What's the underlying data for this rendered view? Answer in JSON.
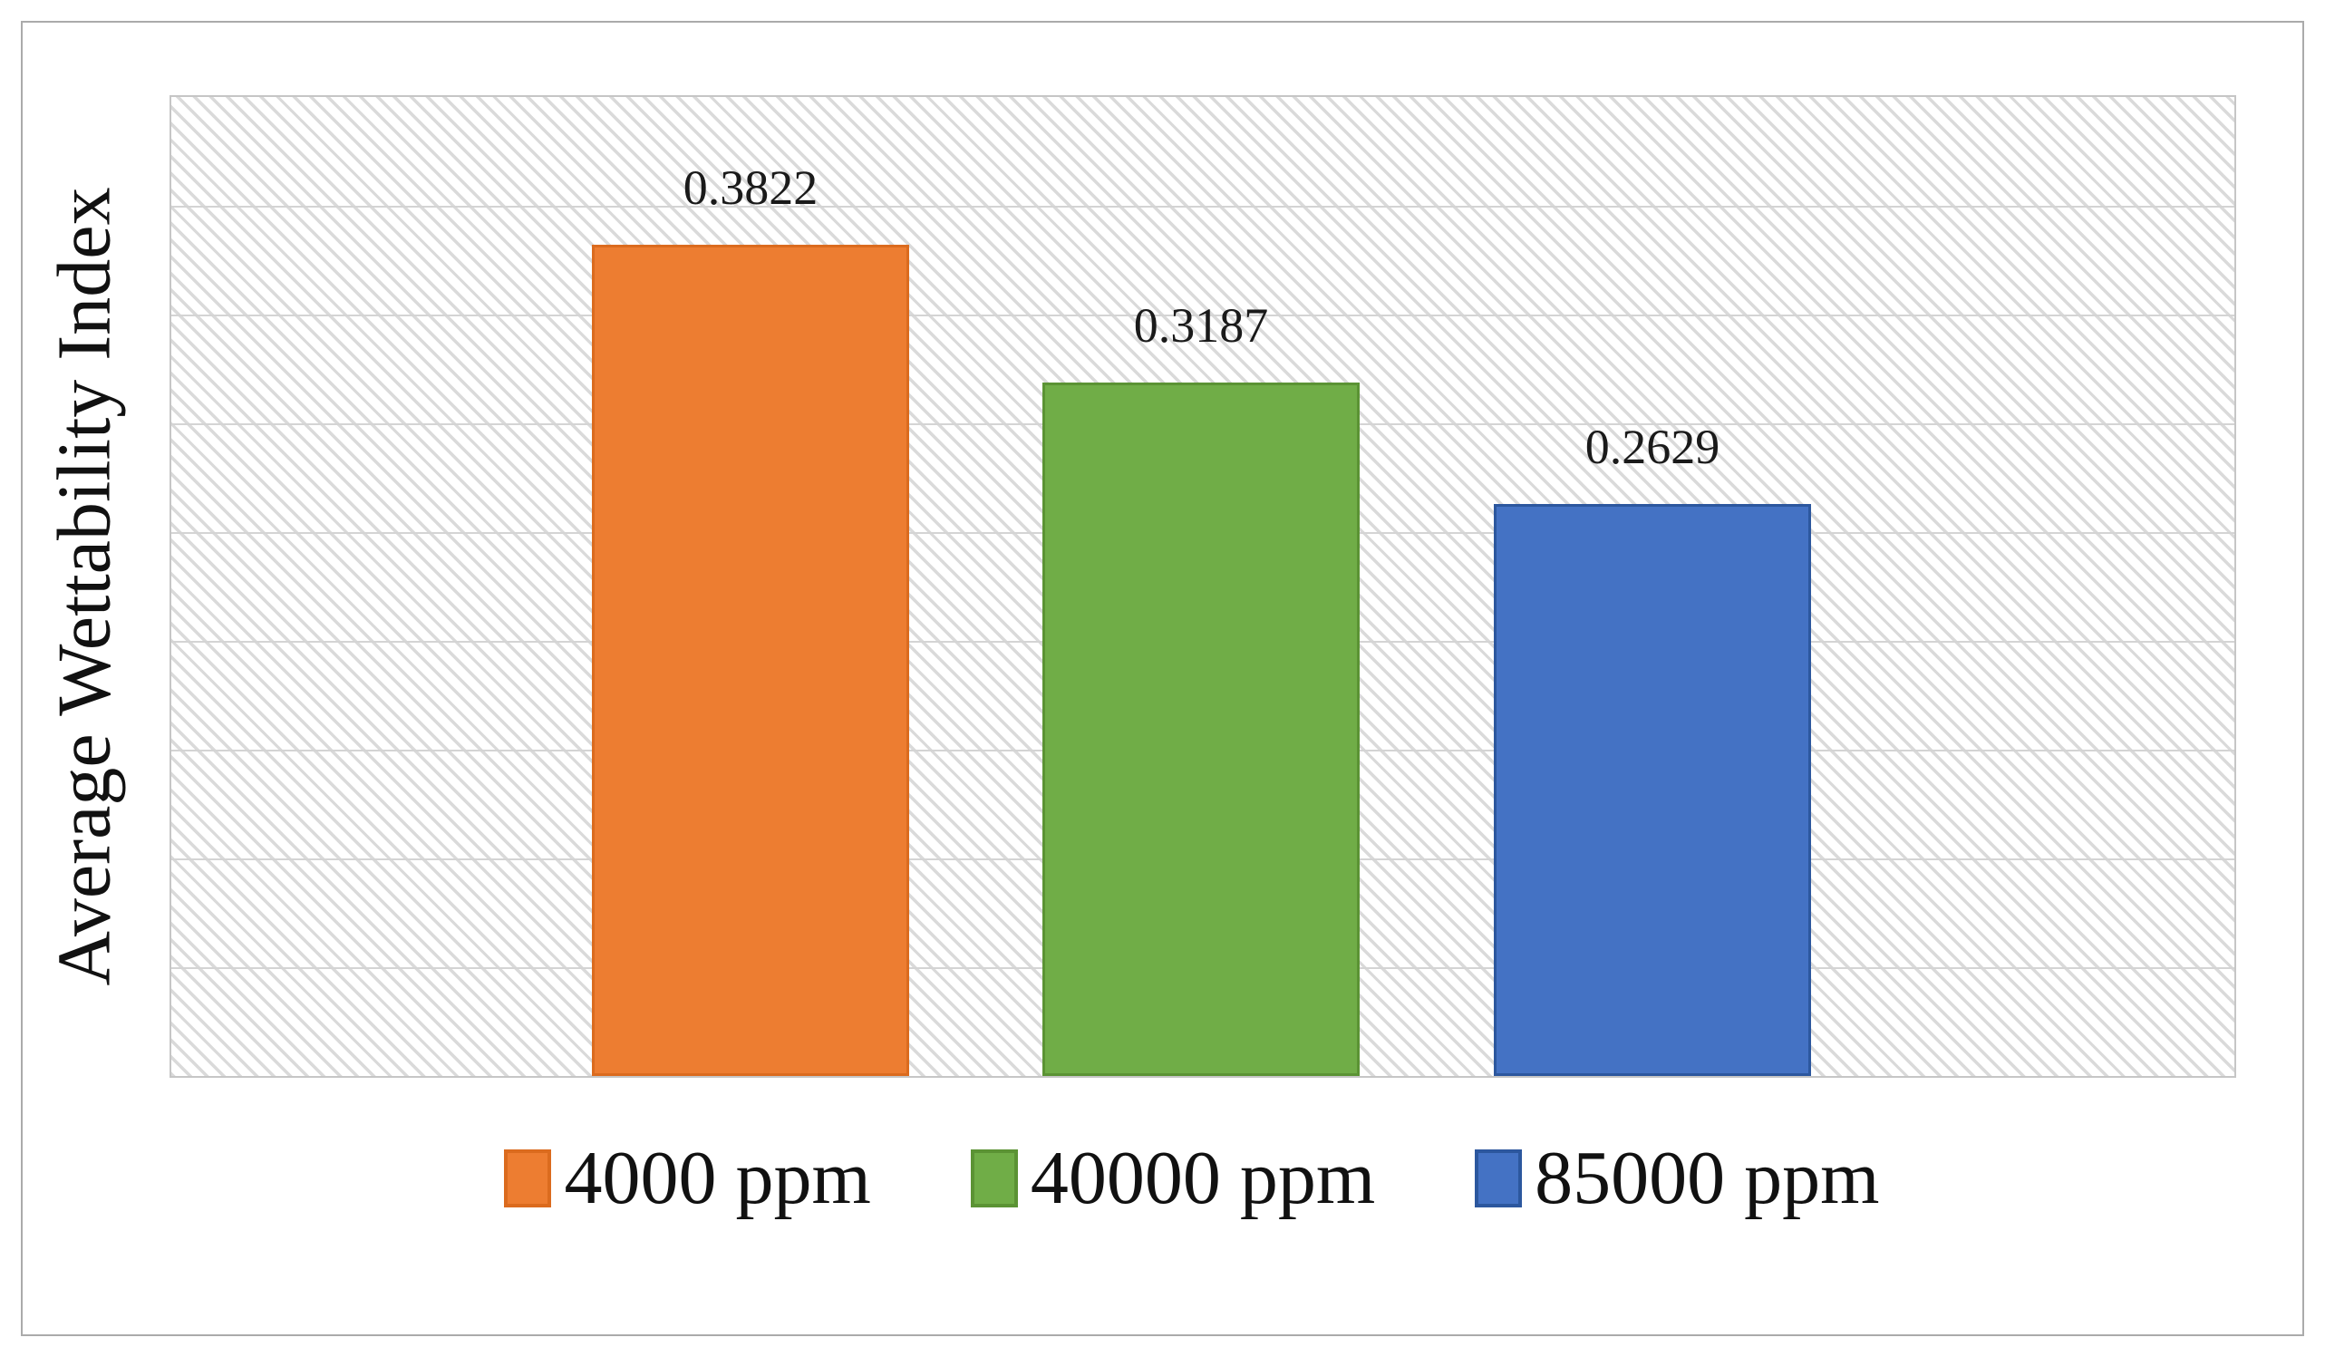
{
  "figure": {
    "background": "#ffffff",
    "description": "Bar chart of average wettability index at three brine salinities"
  },
  "chart_data": {
    "type": "bar",
    "title": "",
    "xlabel": "",
    "ylabel": "Average Wettability Index",
    "categories": [
      "4000 ppm",
      "40000 ppm",
      "85000 ppm"
    ],
    "values": [
      0.3822,
      0.3187,
      0.2629
    ],
    "value_labels": [
      "0.3822",
      "0.3187",
      "0.2629"
    ],
    "series_colors": [
      "#ED7D31",
      "#70AD47",
      "#4472C4"
    ],
    "series_border_colors": [
      "#DB6B1E",
      "#5B9334",
      "#2C579E"
    ],
    "ylim": [
      0,
      0.45
    ],
    "gridline_step": 0.05,
    "grid": "horizontal gridlines only, no axis tick labels",
    "legend_position": "bottom",
    "plot_area_fill": "white with light gray downward diagonal hatch pattern",
    "accent_colors": {
      "gridline": "#d4d4d4",
      "hatch_line": "#dadada",
      "plot_border": "#c6c6c6",
      "outer_border": "#ababab",
      "label_text": "#1a1a1a"
    }
  }
}
